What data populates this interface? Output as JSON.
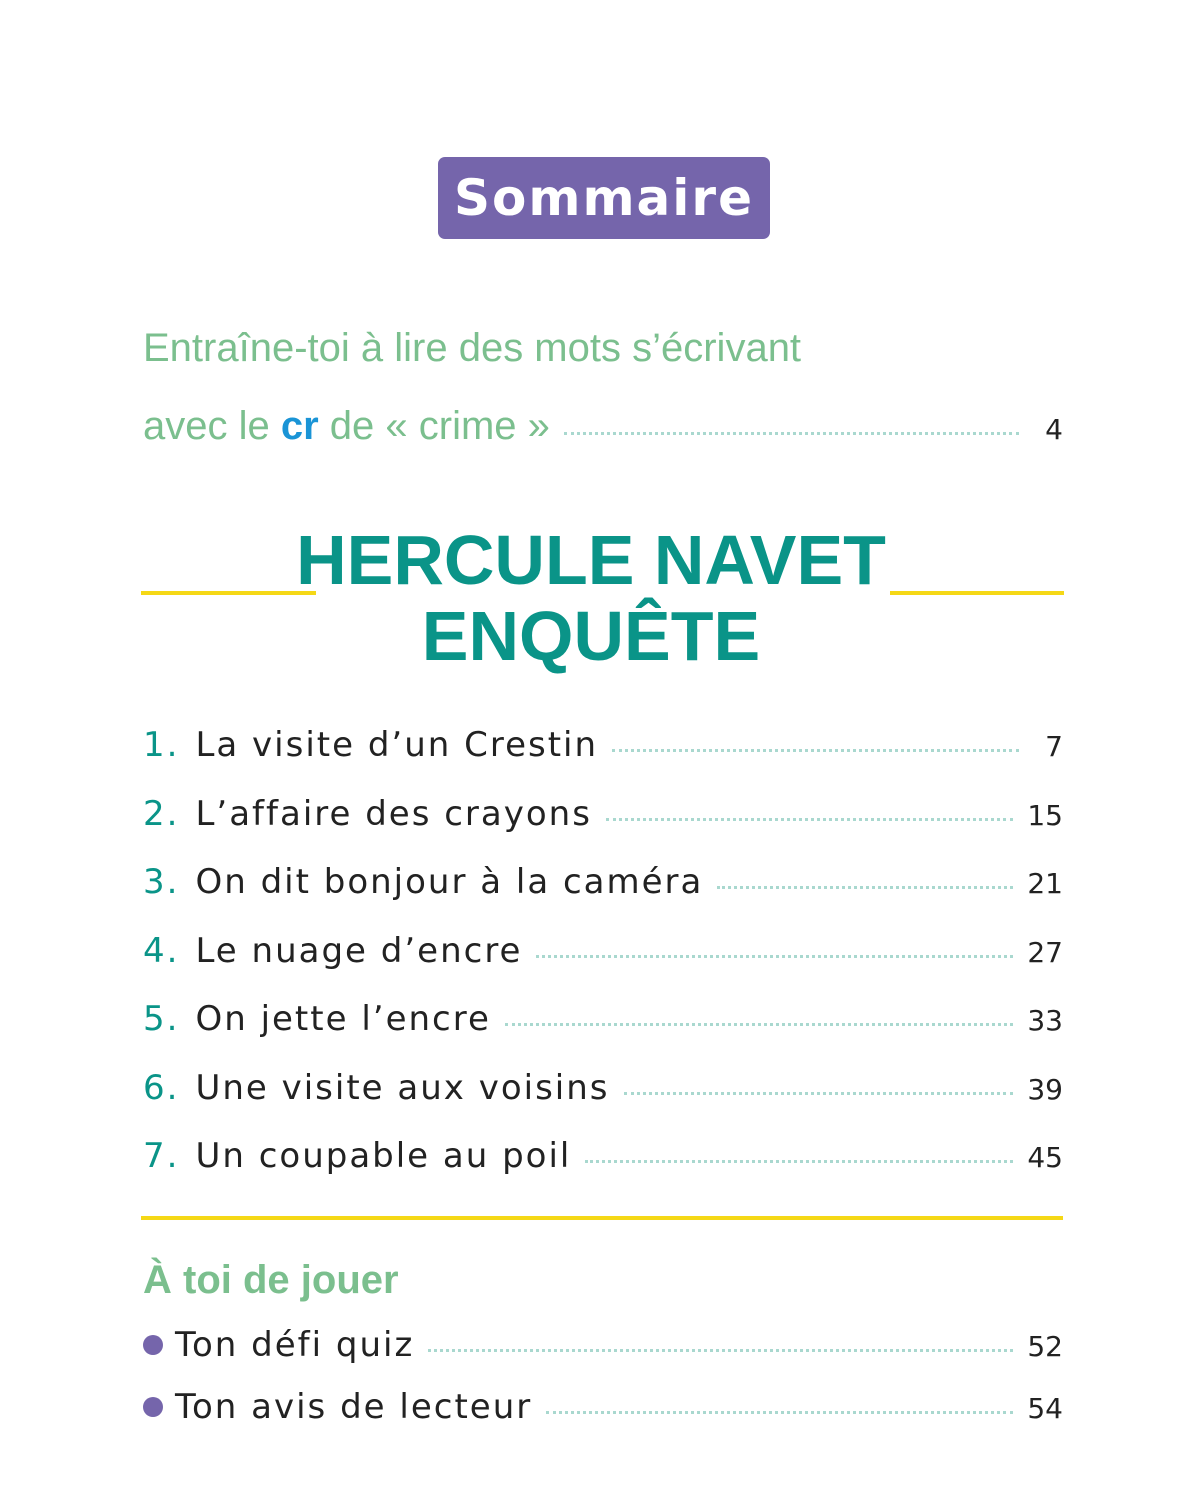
{
  "badge": "Sommaire",
  "intro": {
    "line1": "Entraîne-toi à lire des mots s’écrivant",
    "line2_before": "avec le ",
    "line2_highlight": "cr",
    "line2_after": " de « crime »",
    "page": "4"
  },
  "story_title": {
    "line1": "HERCULE NAVET",
    "line2": "ENQUÊTE"
  },
  "chapters": [
    {
      "num": "1.",
      "title": "La visite d’un Crestin",
      "page": "7"
    },
    {
      "num": "2.",
      "title": "L’affaire des crayons",
      "page": "15"
    },
    {
      "num": "3.",
      "title": "On dit bonjour à la caméra",
      "page": "21"
    },
    {
      "num": "4.",
      "title": "Le nuage d’encre",
      "page": "27"
    },
    {
      "num": "5.",
      "title": "On jette l’encre",
      "page": "33"
    },
    {
      "num": "6.",
      "title": "Une visite aux voisins",
      "page": "39"
    },
    {
      "num": "7.",
      "title": "Un coupable au poil",
      "page": "45"
    }
  ],
  "games": {
    "heading": "À toi de jouer",
    "items": [
      {
        "title": "Ton défi quiz",
        "page": "52"
      },
      {
        "title": "Ton avis de lecteur",
        "page": "54"
      }
    ]
  },
  "colors": {
    "purple": "#7565ab",
    "green": "#7bbf8e",
    "teal": "#0a9488",
    "yellow": "#f5d816",
    "blue": "#1a94d6"
  }
}
